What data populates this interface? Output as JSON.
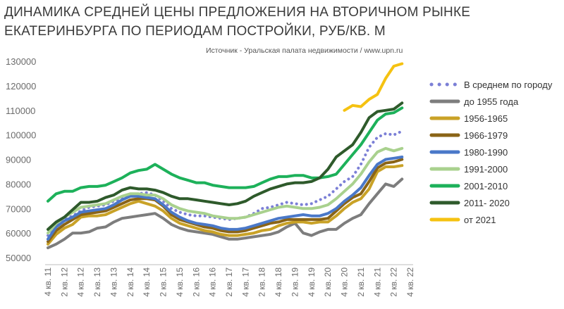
{
  "title_line1": "ДИНАМИКА СРЕДНЕЙ ЦЕНЫ ПРЕДЛОЖЕНИЯ НА ВТОРИЧНОМ РЫНКЕ",
  "title_line2": "ЕКАТЕРИНБУРГА ПО ПЕРИОДАМ ПОСТРОЙКИ, РУБ/КВ. М",
  "source": "Источник - Уральская палата недвижимости / www.upn.ru",
  "chart_data": {
    "type": "line",
    "title": "ДИНАМИКА СРЕДНЕЙ ЦЕНЫ ПРЕДЛОЖЕНИЯ НА ВТОРИЧНОМ РЫНКЕ ЕКАТЕРИНБУРГА ПО ПЕРИОДАМ ПОСТРОЙКИ, РУБ/КВ. М",
    "xlabel": "",
    "ylabel": "",
    "ylim": [
      50000,
      130000
    ],
    "yticks": [
      50000,
      60000,
      70000,
      80000,
      90000,
      100000,
      110000,
      120000,
      130000
    ],
    "grid": false,
    "legend_position": "right",
    "x": [
      "4 кв. 11",
      "1 кв. 12",
      "2 кв. 12",
      "3 кв. 12",
      "4 кв. 12",
      "1 кв. 13",
      "2 кв. 13",
      "3 кв. 13",
      "4 кв. 13",
      "1 кв. 14",
      "2 кв. 14",
      "3 кв. 14",
      "4 кв. 14",
      "1 кв. 15",
      "2 кв. 15",
      "3 кв. 15",
      "4 кв. 15",
      "1 кв. 16",
      "2 кв. 16",
      "3 кв. 16",
      "4 кв. 16",
      "1 кв. 17",
      "2 кв. 17",
      "3 кв. 17",
      "4 кв. 17",
      "1 кв. 18",
      "2 кв. 18",
      "3 кв. 18",
      "4 кв. 18",
      "1 кв. 19",
      "2 кв. 19",
      "3 кв. 19",
      "4 кв. 19",
      "1 кв. 20",
      "2 кв. 20",
      "3 кв. 20",
      "4 кв. 20",
      "1 кв. 21",
      "2 кв. 21",
      "3 кв. 21",
      "4 кв. 21",
      "1 кв. 22",
      "2 кв. 22",
      "3 кв. 22",
      "4 кв. 22"
    ],
    "xtick_labels": [
      "4 кв. 11",
      "2 кв. 12",
      "4 кв. 12",
      "2 кв. 13",
      "4 кв. 13",
      "2 кв. 14",
      "4 кв. 14",
      "2 кв. 15",
      "4 кв. 15",
      "2 кв. 16",
      "4 кв. 16",
      "2 кв. 17",
      "4 кв. 17",
      "2 кв. 18",
      "4 кв. 18",
      "2 кв. 19",
      "4 кв. 19",
      "2 кв. 20",
      "4 кв. 20",
      "2 кв. 21",
      "4 кв. 21",
      "2 кв. 22",
      "4 кв. 22"
    ],
    "series": [
      {
        "name": "В среднем по городу",
        "color": "#7b7fd6",
        "dash": "dot",
        "values": [
          59000,
          62500,
          65500,
          67000,
          69000,
          70500,
          71000,
          71500,
          73000,
          74000,
          75500,
          76000,
          76500,
          75500,
          73000,
          70000,
          68500,
          67500,
          67000,
          67000,
          66500,
          66000,
          65500,
          66000,
          66500,
          68000,
          70000,
          70500,
          71500,
          72500,
          72000,
          71500,
          72000,
          73500,
          75000,
          78000,
          81000,
          83000,
          88000,
          95000,
          99000,
          100500,
          100000,
          101500,
          null
        ]
      },
      {
        "name": "до 1955 года",
        "color": "#7d7d7d",
        "dash": "solid",
        "values": [
          54000,
          55500,
          57500,
          60000,
          60000,
          60500,
          62000,
          62500,
          64500,
          66000,
          66500,
          67000,
          67500,
          68000,
          66000,
          63500,
          62000,
          61000,
          60500,
          60000,
          59500,
          58500,
          57500,
          57500,
          58000,
          58500,
          59000,
          59500,
          60500,
          62500,
          64000,
          60000,
          59000,
          60500,
          61500,
          61500,
          64000,
          66000,
          67500,
          72000,
          76000,
          80000,
          79000,
          82000,
          null
        ]
      },
      {
        "name": "1956-1965",
        "color": "#c9a227",
        "dash": "solid",
        "values": [
          55500,
          59500,
          62000,
          63500,
          66500,
          67000,
          67000,
          67500,
          69000,
          70500,
          72000,
          73000,
          72000,
          71000,
          69000,
          66000,
          64000,
          63000,
          62000,
          61000,
          60500,
          59500,
          59000,
          59000,
          59500,
          60000,
          61000,
          61500,
          63000,
          64000,
          64500,
          64500,
          64000,
          64500,
          64500,
          67000,
          70000,
          72500,
          74000,
          78000,
          85000,
          87000,
          87000,
          87500,
          null
        ]
      },
      {
        "name": "1966-1979",
        "color": "#8a6417",
        "dash": "solid",
        "values": [
          56500,
          61000,
          63500,
          65500,
          67500,
          68000,
          68500,
          69000,
          70500,
          72000,
          73500,
          74000,
          74000,
          73500,
          71000,
          67500,
          65500,
          64500,
          63500,
          62500,
          62000,
          61000,
          60500,
          60500,
          61000,
          62000,
          63000,
          64000,
          64500,
          65500,
          65500,
          65500,
          65500,
          65500,
          66000,
          69000,
          72000,
          74500,
          76000,
          81000,
          86500,
          88500,
          89000,
          90000,
          null
        ]
      },
      {
        "name": "1980-1990",
        "color": "#4a78c8",
        "dash": "solid",
        "values": [
          57500,
          62500,
          65000,
          66500,
          68500,
          69000,
          69500,
          70000,
          71500,
          73500,
          75000,
          75000,
          74500,
          74000,
          71500,
          68500,
          66500,
          65000,
          64000,
          63500,
          63000,
          62000,
          61500,
          61500,
          62000,
          63000,
          64000,
          65000,
          66000,
          66500,
          67000,
          67500,
          67000,
          67000,
          68000,
          70000,
          73000,
          75500,
          78500,
          83500,
          88000,
          90000,
          90500,
          91000,
          null
        ]
      },
      {
        "name": "1991-2000",
        "color": "#a9d18e",
        "dash": "solid",
        "values": [
          60000,
          64000,
          66500,
          68500,
          70500,
          71000,
          71500,
          72000,
          73500,
          75000,
          76000,
          76000,
          75500,
          75500,
          74000,
          71500,
          70000,
          69000,
          68500,
          68000,
          67000,
          66500,
          66000,
          66000,
          66500,
          67500,
          68500,
          69500,
          70500,
          71000,
          70500,
          70000,
          70000,
          70500,
          71500,
          74000,
          77000,
          80000,
          84000,
          89000,
          93000,
          94500,
          93500,
          94500,
          null
        ]
      },
      {
        "name": "2001-2010",
        "color": "#1db15a",
        "dash": "solid",
        "values": [
          73000,
          76000,
          77000,
          77000,
          78500,
          79000,
          79000,
          79500,
          81000,
          82500,
          84500,
          85500,
          86000,
          88000,
          86000,
          84000,
          82500,
          81500,
          80500,
          80500,
          79500,
          79000,
          78500,
          78500,
          78500,
          79000,
          80500,
          82000,
          83000,
          83000,
          83500,
          83500,
          82500,
          82500,
          83000,
          84000,
          88000,
          92000,
          96000,
          101000,
          106000,
          108500,
          109000,
          111000,
          null
        ]
      },
      {
        "name": "2011- 2020",
        "color": "#2e5a2b",
        "dash": "solid",
        "values": [
          61500,
          64500,
          66500,
          69500,
          72500,
          72500,
          73000,
          74500,
          75500,
          77500,
          78500,
          78000,
          78000,
          77500,
          76500,
          75000,
          74000,
          74000,
          73500,
          73000,
          72500,
          72000,
          71500,
          72000,
          73000,
          75000,
          76500,
          78000,
          79000,
          80000,
          80500,
          80500,
          81000,
          82500,
          86000,
          91000,
          93500,
          96000,
          101000,
          107000,
          109500,
          110000,
          110500,
          113000,
          null
        ]
      },
      {
        "name": "от 2021",
        "color": "#f5c211",
        "dash": "solid",
        "values": [
          null,
          null,
          null,
          null,
          null,
          null,
          null,
          null,
          null,
          null,
          null,
          null,
          null,
          null,
          null,
          null,
          null,
          null,
          null,
          null,
          null,
          null,
          null,
          null,
          null,
          null,
          null,
          null,
          null,
          null,
          null,
          null,
          null,
          null,
          null,
          null,
          110000,
          112000,
          111500,
          114500,
          116500,
          123000,
          128000,
          129000,
          null
        ]
      }
    ]
  }
}
